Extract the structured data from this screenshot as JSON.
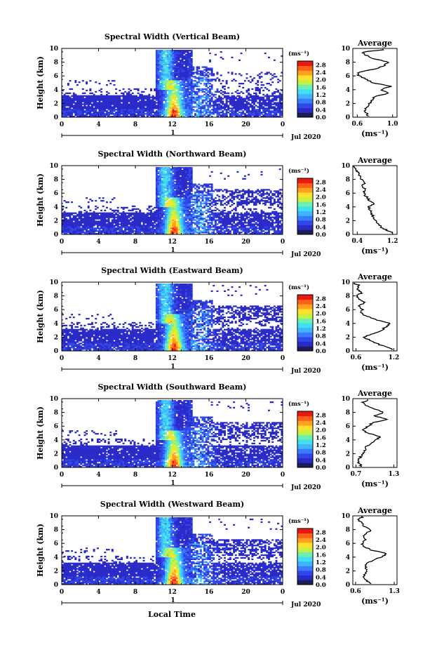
{
  "figure": {
    "xlabel": "Local Time",
    "ylabel": "Height (km)",
    "date_label": "Jul 2020",
    "day_label": "1",
    "unit_label": "(ms⁻¹)",
    "avg_title": "Average",
    "avg_xlabel": "(ms⁻¹)"
  },
  "colors": {
    "palette": [
      "#1d1d55",
      "#2a2ac8",
      "#3048e8",
      "#3a7cff",
      "#40b4ff",
      "#40e0f0",
      "#6cf0b0",
      "#c8f040",
      "#ffe02a",
      "#ffa020",
      "#ff6018",
      "#e81a10"
    ]
  },
  "chart_data": [
    {
      "type": "heatmap",
      "title": "Spectral Width (Vertical Beam)",
      "x_ticks": [
        "0",
        "4",
        "8",
        "12",
        "16",
        "20",
        "0"
      ],
      "y_ticks": [
        "0",
        "2",
        "4",
        "6",
        "8",
        "10"
      ],
      "xlim": [
        0,
        24
      ],
      "ylim": [
        0,
        10
      ],
      "colorbar_ticks": [
        "0.0",
        "0.4",
        "0.8",
        "1.2",
        "1.6",
        "2.0",
        "2.4",
        "2.8"
      ],
      "colorbar_range": [
        0,
        3.0
      ],
      "average_profile": {
        "type": "line",
        "x_ticks": [
          "0.6",
          "1.0"
        ],
        "xlim": [
          0.55,
          1.05
        ],
        "heights": [
          0.2,
          1,
          2,
          3,
          3.5,
          4,
          4.5,
          5,
          5.5,
          6,
          6.5,
          7,
          7.5,
          8,
          8.5,
          9,
          9.5,
          9.8
        ],
        "values": [
          0.72,
          0.68,
          0.74,
          0.8,
          0.96,
          0.86,
          0.98,
          0.78,
          0.7,
          0.62,
          0.6,
          0.8,
          0.9,
          0.96,
          0.78,
          0.7,
          0.66,
          0.9
        ]
      }
    },
    {
      "type": "heatmap",
      "title": "Spectral Width (Northward Beam)",
      "x_ticks": [
        "0",
        "4",
        "8",
        "12",
        "16",
        "20",
        "0"
      ],
      "y_ticks": [
        "0",
        "2",
        "4",
        "6",
        "8",
        "10"
      ],
      "xlim": [
        0,
        24
      ],
      "ylim": [
        0,
        10
      ],
      "colorbar_ticks": [
        "0.0",
        "0.4",
        "0.8",
        "1.2",
        "1.6",
        "2.0",
        "2.4",
        "2.8"
      ],
      "colorbar_range": [
        0,
        3.0
      ],
      "average_profile": {
        "type": "line",
        "x_ticks": [
          "0.4",
          "1.2"
        ],
        "xlim": [
          0.3,
          1.3
        ],
        "heights": [
          0.2,
          1,
          2,
          3,
          4,
          4.5,
          5,
          6,
          6.5,
          7,
          7.5,
          8,
          8.5,
          9,
          9.5,
          9.8
        ],
        "values": [
          1.2,
          0.95,
          0.82,
          0.72,
          0.66,
          0.8,
          0.66,
          0.55,
          0.58,
          0.52,
          0.56,
          0.5,
          0.46,
          0.42,
          0.36,
          0.33
        ]
      }
    },
    {
      "type": "heatmap",
      "title": "Spectral Width (Eastward Beam)",
      "x_ticks": [
        "0",
        "4",
        "8",
        "12",
        "16",
        "20",
        "0"
      ],
      "y_ticks": [
        "0",
        "2",
        "4",
        "6",
        "8",
        "10"
      ],
      "xlim": [
        0,
        24
      ],
      "ylim": [
        0,
        10
      ],
      "colorbar_ticks": [
        "0.0",
        "0.4",
        "0.8",
        "1.2",
        "1.6",
        "2.0",
        "2.4",
        "2.8"
      ],
      "colorbar_range": [
        0,
        3.0
      ],
      "average_profile": {
        "type": "line",
        "x_ticks": [
          "0.6",
          "1.2"
        ],
        "xlim": [
          0.55,
          1.25
        ],
        "heights": [
          0.2,
          1,
          2,
          3,
          4,
          4.5,
          5,
          5.5,
          6,
          6.5,
          7,
          7.5,
          8,
          8.5,
          9,
          9.5,
          9.8
        ],
        "values": [
          1.18,
          0.95,
          0.72,
          1.0,
          1.15,
          0.92,
          0.78,
          0.68,
          0.7,
          0.64,
          0.74,
          0.66,
          0.62,
          0.7,
          0.6,
          0.66,
          0.58
        ]
      }
    },
    {
      "type": "heatmap",
      "title": "Spectral Width (Southward Beam)",
      "x_ticks": [
        "0",
        "4",
        "8",
        "12",
        "16",
        "20",
        "0"
      ],
      "y_ticks": [
        "0",
        "2",
        "4",
        "6",
        "8",
        "10"
      ],
      "xlim": [
        0,
        24
      ],
      "ylim": [
        0,
        10
      ],
      "colorbar_ticks": [
        "0.0",
        "0.4",
        "0.8",
        "1.2",
        "1.6",
        "2.0",
        "2.4",
        "2.8"
      ],
      "colorbar_range": [
        0,
        3.0
      ],
      "average_profile": {
        "type": "line",
        "x_ticks": [
          "0.7",
          "1.3"
        ],
        "xlim": [
          0.65,
          1.35
        ],
        "heights": [
          0.2,
          1,
          2,
          3,
          4,
          4.5,
          5,
          5.5,
          6,
          6.5,
          7,
          7.5,
          8,
          8.5,
          9,
          9.5,
          9.8
        ],
        "values": [
          0.78,
          0.72,
          0.82,
          0.86,
          1.02,
          1.08,
          0.88,
          0.8,
          0.9,
          0.96,
          1.22,
          0.98,
          1.15,
          1.0,
          0.86,
          0.8,
          0.9
        ]
      }
    },
    {
      "type": "heatmap",
      "title": "Spectral Width (Westward Beam)",
      "x_ticks": [
        "0",
        "4",
        "8",
        "12",
        "16",
        "20",
        "0"
      ],
      "y_ticks": [
        "0",
        "2",
        "4",
        "6",
        "8",
        "10"
      ],
      "xlim": [
        0,
        24
      ],
      "ylim": [
        0,
        10
      ],
      "colorbar_ticks": [
        "0.0",
        "0.4",
        "0.8",
        "1.2",
        "1.6",
        "2.0",
        "2.4",
        "2.8"
      ],
      "colorbar_range": [
        0,
        3.0
      ],
      "average_profile": {
        "type": "line",
        "x_ticks": [
          "0.6",
          "1.3"
        ],
        "xlim": [
          0.55,
          1.35
        ],
        "heights": [
          0.2,
          1,
          2,
          3,
          4,
          4.5,
          5,
          5.5,
          6,
          6.5,
          7,
          7.5,
          8,
          8.5,
          9,
          9.5,
          9.8
        ],
        "values": [
          0.86,
          0.74,
          0.8,
          0.78,
          1.06,
          1.18,
          0.9,
          0.76,
          0.72,
          0.78,
          0.74,
          0.8,
          0.88,
          0.76,
          0.7,
          0.64,
          0.72
        ]
      }
    }
  ]
}
